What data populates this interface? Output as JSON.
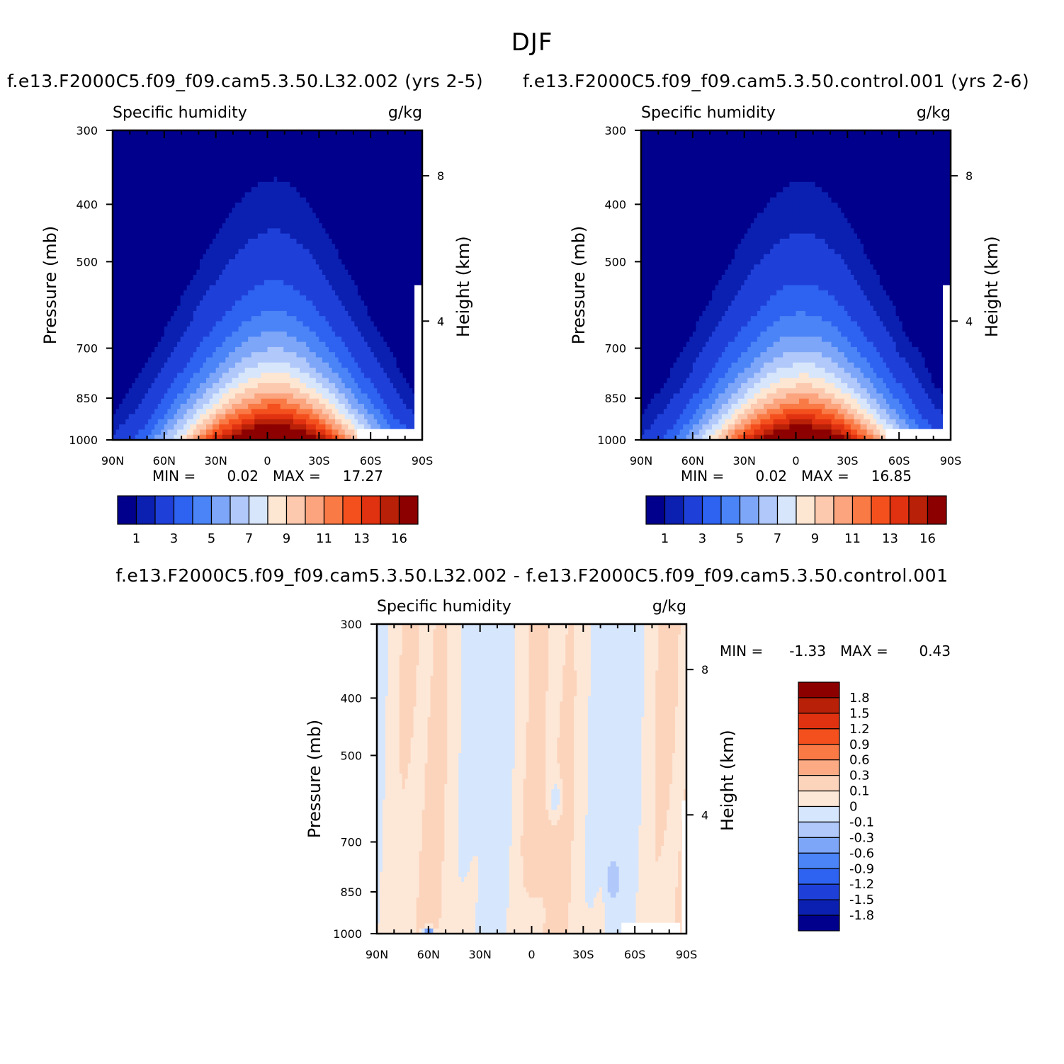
{
  "figure": {
    "title": "DJF",
    "colors": {
      "abs_levels": [
        "#00008c",
        "#0b20b0",
        "#1f40d8",
        "#2e62f0",
        "#4a84f6",
        "#7ea6f8",
        "#b0c8fa",
        "#d8e6fc",
        "#fde6d2",
        "#fcc8ae",
        "#fba47e",
        "#fa7a46",
        "#f4501e",
        "#e03210",
        "#b82008",
        "#8c0000"
      ],
      "diff_levels": [
        "#00008c",
        "#0b20b0",
        "#1f40d8",
        "#2e62f0",
        "#4a84f6",
        "#7ea6f8",
        "#b0c8fa",
        "#d6e6fc",
        "#fde8d8",
        "#fcd4bc",
        "#fbaa84",
        "#fa7a46",
        "#f4501e",
        "#e03210",
        "#b82008",
        "#8c0000"
      ]
    }
  },
  "chart_data": [
    {
      "id": "left",
      "type": "heatmap",
      "case_title": "f.e13.F2000C5.f09_f09.cam5.3.50.L32.002 (yrs 2-5)",
      "title": "Specific humidity",
      "units": "g/kg",
      "ylabel": "Pressure (mb)",
      "y2label": "Height (km)",
      "x_ticks": [
        "90N",
        "60N",
        "30N",
        "0",
        "30S",
        "60S",
        "90S"
      ],
      "y_ticks": [
        "300",
        "400",
        "500",
        "700",
        "850",
        "1000"
      ],
      "y2_ticks": [
        "8",
        "4"
      ],
      "stats": {
        "min_label": "MIN =",
        "min": "0.02",
        "max_label": "MAX =",
        "max": "17.27"
      },
      "levels": [
        0.5,
        1,
        2,
        3,
        4,
        5,
        6,
        7,
        8,
        9,
        10,
        11,
        12,
        13,
        14,
        16
      ],
      "colorbar_labels": [
        "1",
        "3",
        "5",
        "7",
        "9",
        "11",
        "13",
        "16"
      ],
      "ylim": [
        1000,
        300
      ],
      "xlim": [
        -90,
        90
      ]
    },
    {
      "id": "right",
      "type": "heatmap",
      "case_title": "f.e13.F2000C5.f09_f09.cam5.3.50.control.001 (yrs 2-6)",
      "title": "Specific humidity",
      "units": "g/kg",
      "ylabel": "Pressure (mb)",
      "y2label": "Height (km)",
      "x_ticks": [
        "90N",
        "60N",
        "30N",
        "0",
        "30S",
        "60S",
        "90S"
      ],
      "y_ticks": [
        "300",
        "400",
        "500",
        "700",
        "850",
        "1000"
      ],
      "y2_ticks": [
        "8",
        "4"
      ],
      "stats": {
        "min_label": "MIN =",
        "min": "0.02",
        "max_label": "MAX =",
        "max": "16.85"
      },
      "levels": [
        0.5,
        1,
        2,
        3,
        4,
        5,
        6,
        7,
        8,
        9,
        10,
        11,
        12,
        13,
        14,
        16
      ],
      "colorbar_labels": [
        "1",
        "3",
        "5",
        "7",
        "9",
        "11",
        "13",
        "16"
      ],
      "ylim": [
        1000,
        300
      ],
      "xlim": [
        -90,
        90
      ]
    },
    {
      "id": "diff",
      "type": "heatmap",
      "case_title": "f.e13.F2000C5.f09_f09.cam5.3.50.L32.002 - f.e13.F2000C5.f09_f09.cam5.3.50.control.001",
      "title": "Specific humidity",
      "units": "g/kg",
      "ylabel": "Pressure (mb)",
      "y2label": "Height (km)",
      "x_ticks": [
        "90N",
        "60N",
        "30N",
        "0",
        "30S",
        "60S",
        "90S"
      ],
      "y_ticks": [
        "300",
        "400",
        "500",
        "700",
        "850",
        "1000"
      ],
      "y2_ticks": [
        "8",
        "4"
      ],
      "stats": {
        "min_label": "MIN =",
        "min": "-1.33",
        "max_label": "MAX =",
        "max": "0.43"
      },
      "colorbar_labels": [
        "1.8",
        "1.5",
        "1.2",
        "0.9",
        "0.6",
        "0.3",
        "0.1",
        "0",
        "-0.1",
        "-0.3",
        "-0.6",
        "-0.9",
        "-1.2",
        "-1.5",
        "-1.8"
      ],
      "ylim": [
        1000,
        300
      ],
      "xlim": [
        -90,
        90
      ]
    }
  ]
}
